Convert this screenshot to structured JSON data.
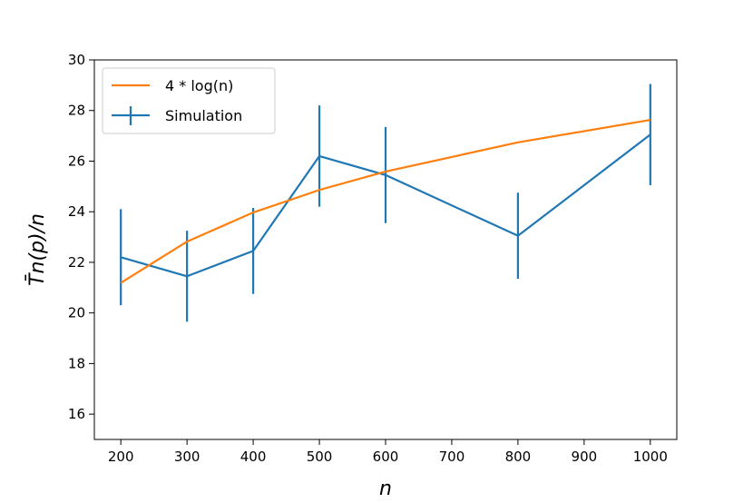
{
  "chart_data": {
    "type": "line",
    "title": "",
    "xlabel": "n",
    "ylabel": "T̄n(p)/n",
    "xlim": [
      160,
      1040
    ],
    "ylim": [
      15,
      30
    ],
    "xticks": [
      200,
      300,
      400,
      500,
      600,
      700,
      800,
      900,
      1000
    ],
    "yticks": [
      16,
      18,
      20,
      22,
      24,
      26,
      28,
      30
    ],
    "grid": false,
    "legend_position": "top-left",
    "series": [
      {
        "name": "4 * log(n)",
        "color": "#ff7f0e",
        "x": [
          200,
          300,
          400,
          500,
          600,
          800,
          1000
        ],
        "values": [
          21.19,
          22.82,
          23.97,
          24.86,
          25.59,
          26.74,
          27.63
        ]
      },
      {
        "name": "Simulation",
        "color": "#1f77b4",
        "x": [
          200,
          300,
          400,
          500,
          600,
          800,
          1000
        ],
        "values": [
          22.2,
          21.45,
          22.45,
          26.2,
          25.45,
          23.05,
          27.05
        ],
        "errors": [
          1.9,
          1.8,
          1.7,
          2.0,
          1.9,
          1.7,
          2.0
        ]
      }
    ]
  }
}
